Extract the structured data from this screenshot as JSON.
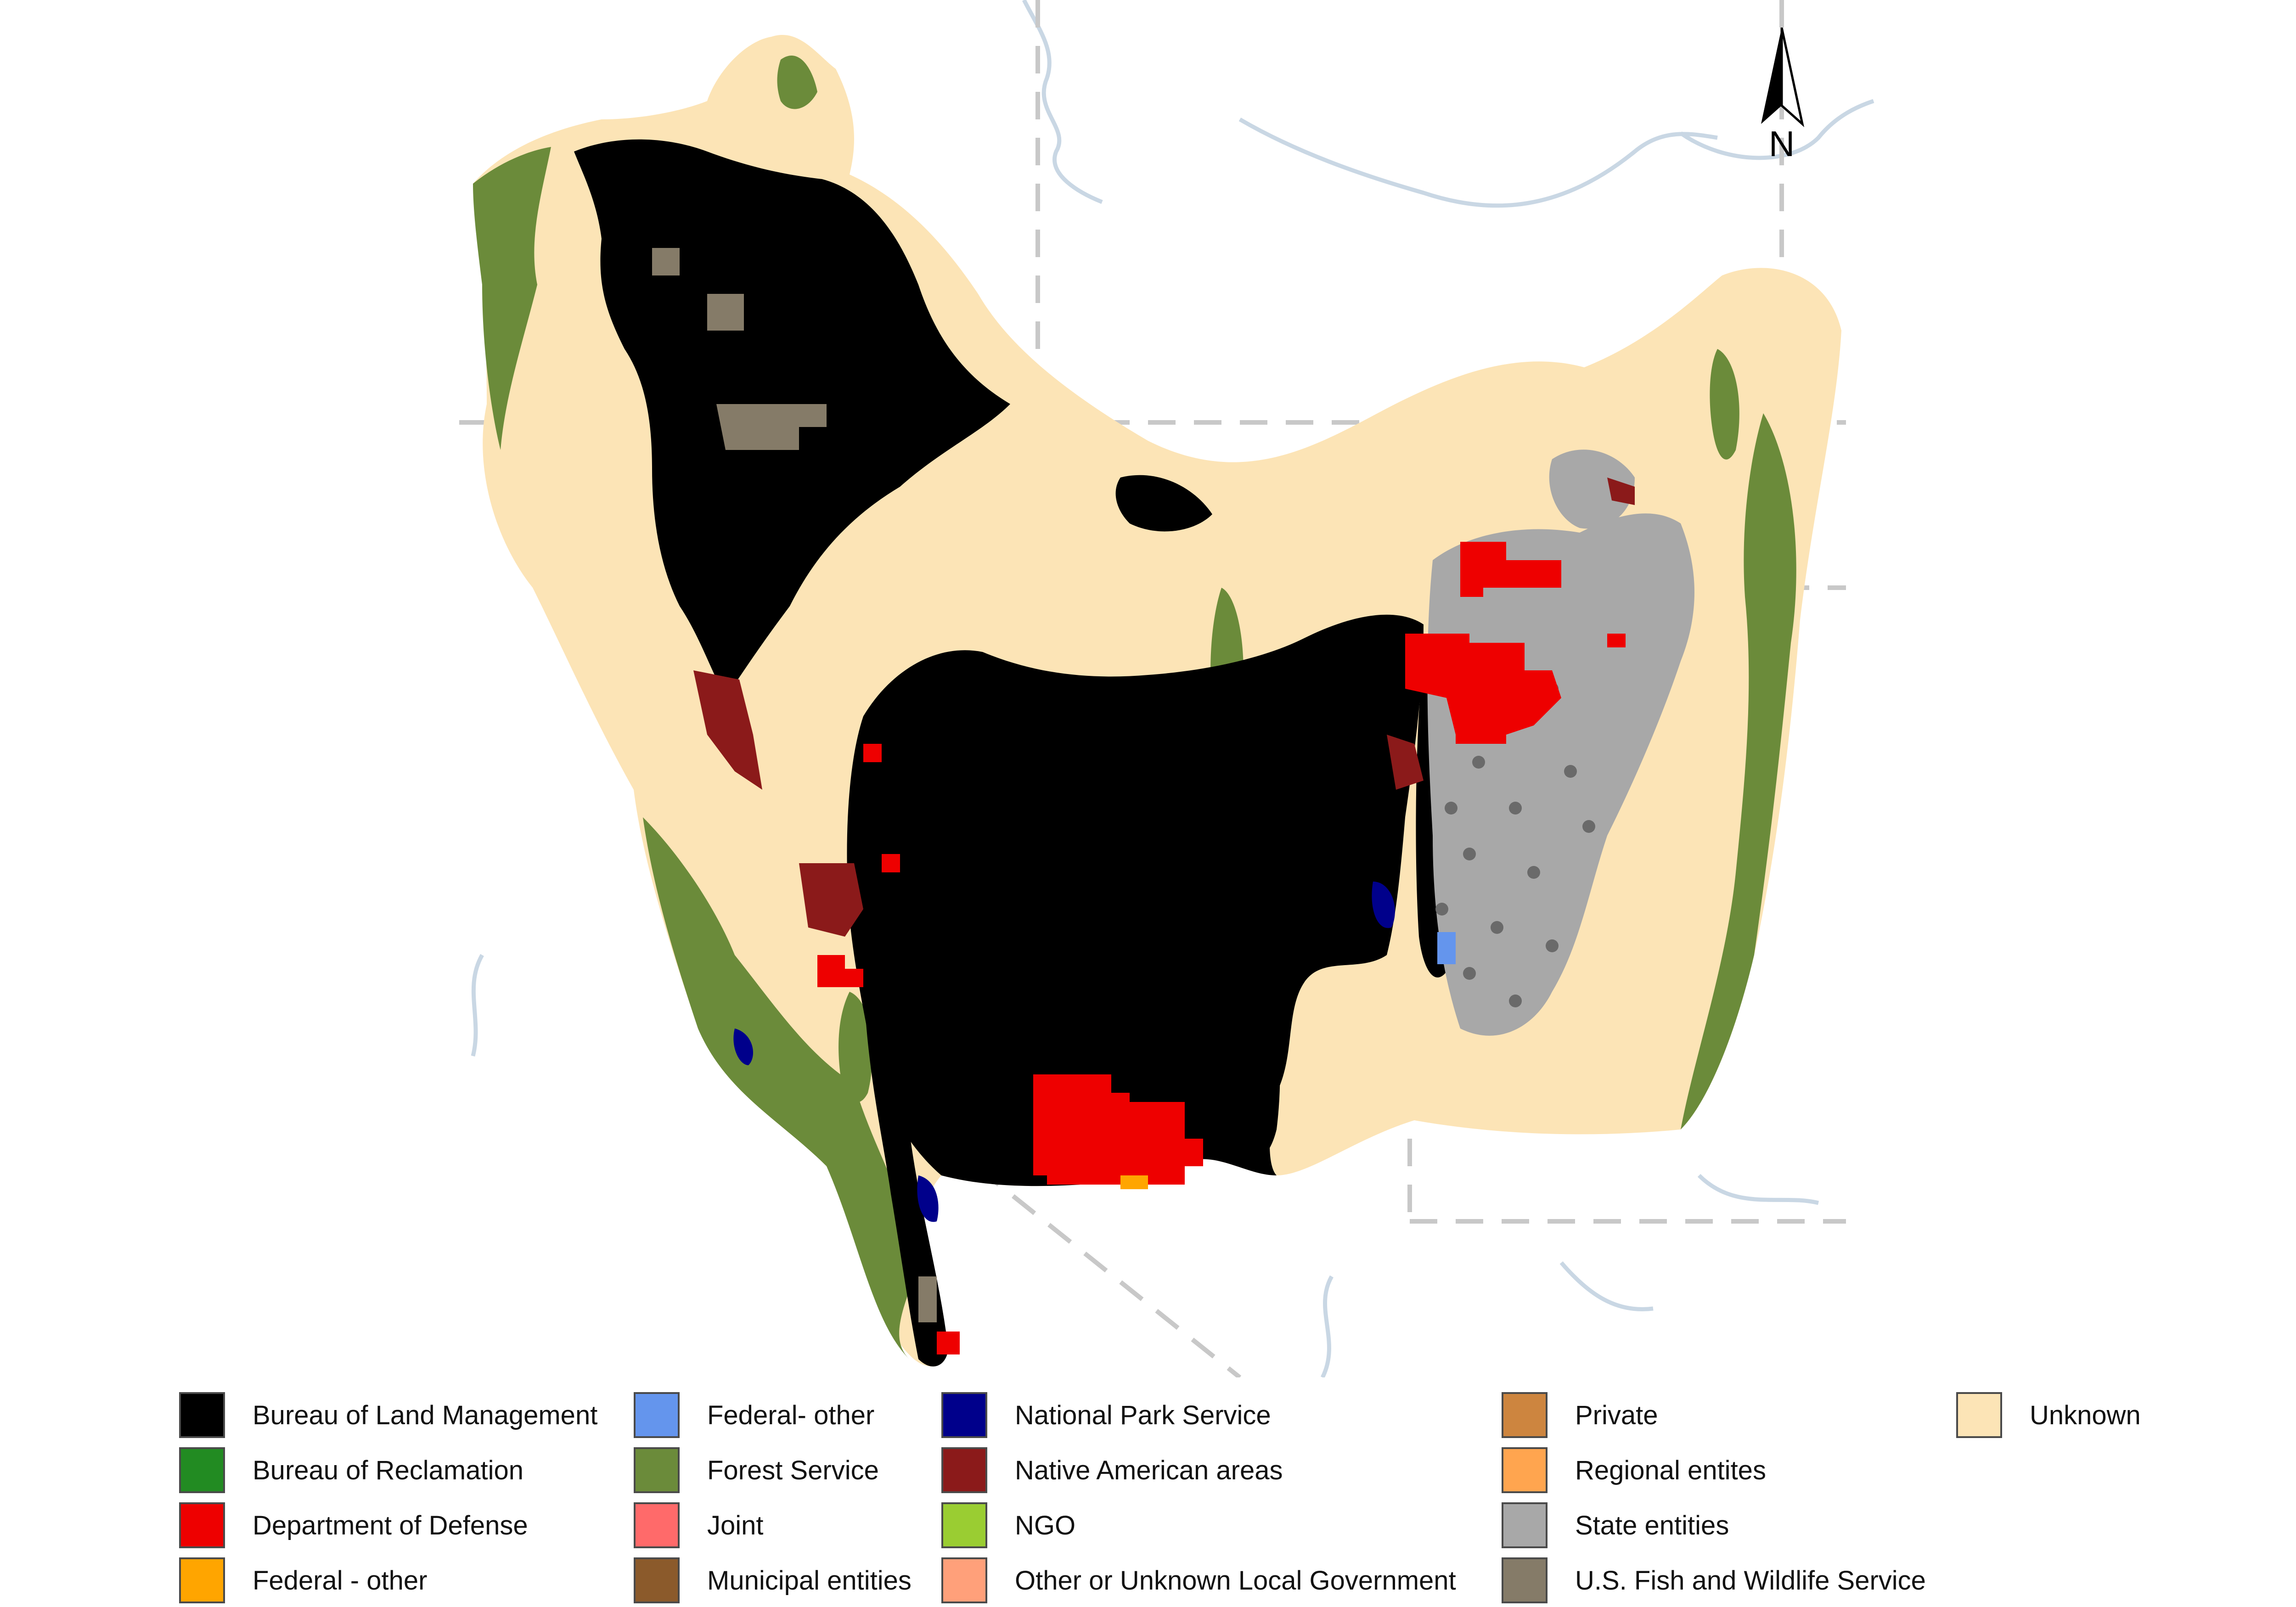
{
  "map": {
    "colors": {
      "background": "#ffffff",
      "state_border": "#c8c8c8",
      "river": "#c9d7e4",
      "unknown": "#fce4b6",
      "blm": "#000000",
      "forest": "#6b8b3a",
      "defense": "#ee0000",
      "native": "#8b1a1a",
      "state": "#a8a8a8",
      "fws": "#857b68",
      "nps": "#00008b",
      "federal_other_blue": "#6495ed"
    },
    "north_arrow": {
      "label": "N",
      "icon": "north-arrow-icon"
    }
  },
  "legend": {
    "columns": [
      [
        {
          "label": "Bureau of Land Management",
          "color": "#000000"
        },
        {
          "label": "Bureau of Reclamation",
          "color": "#228b22"
        },
        {
          "label": "Department of Defense",
          "color": "#ee0000"
        },
        {
          "label": "Federal - other",
          "color": "#ffa500"
        }
      ],
      [
        {
          "label": "Federal- other",
          "color": "#6495ed"
        },
        {
          "label": "Forest Service",
          "color": "#6b8b3a"
        },
        {
          "label": "Joint",
          "color": "#ff6a6a"
        },
        {
          "label": "Municipal entities",
          "color": "#8b5a2b"
        }
      ],
      [
        {
          "label": "National Park Service",
          "color": "#00008b"
        },
        {
          "label": "Native American areas",
          "color": "#8b1a1a"
        },
        {
          "label": "NGO",
          "color": "#9acd32"
        },
        {
          "label": "Other or Unknown Local Government",
          "color": "#ffa07a"
        }
      ],
      [
        {
          "label": "Private",
          "color": "#cd853f"
        },
        {
          "label": "Regional entites",
          "color": "#ffa54f"
        },
        {
          "label": "State entities",
          "color": "#a8a8a8"
        },
        {
          "label": "U.S. Fish and Wildlife Service",
          "color": "#857b68"
        }
      ],
      [
        {
          "label": "Unknown",
          "color": "#fce4b6"
        }
      ]
    ]
  }
}
